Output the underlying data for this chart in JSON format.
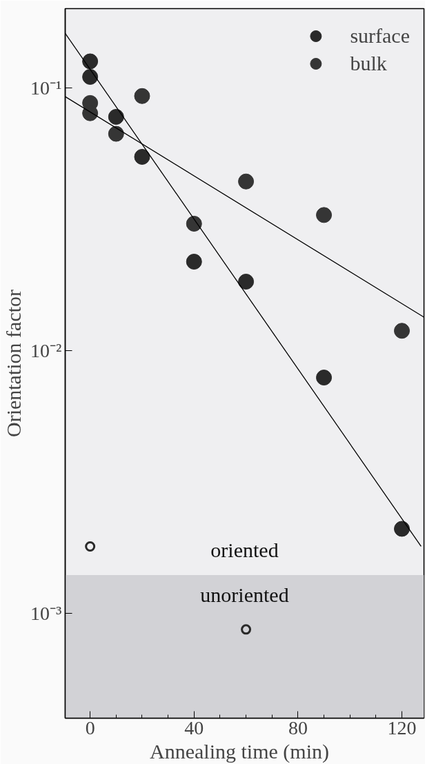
{
  "chart_data": {
    "type": "scatter",
    "xlabel": "Annealing time   (min)",
    "ylabel": "Orientation factor",
    "log": "y",
    "xlim": [
      -9.6,
      128.5
    ],
    "ylim": [
      0.0004,
      0.2
    ],
    "xticks": [
      0,
      {
        "value": 10,
        "label": null
      },
      {
        "value": 20,
        "label": null
      },
      {
        "value": 30,
        "label": null
      },
      40,
      {
        "value": 50,
        "label": null
      },
      {
        "value": 60,
        "label": null
      },
      {
        "value": 70,
        "label": null
      },
      80,
      {
        "value": 90,
        "label": null
      },
      {
        "value": 100,
        "label": null
      },
      {
        "value": 110,
        "label": null
      },
      120
    ],
    "yticks": [
      {
        "value": 0.1,
        "label": "10⁻¹"
      },
      {
        "value": 0.01,
        "label": "10⁻²"
      },
      {
        "value": 0.001,
        "label": "10⁻³"
      }
    ],
    "grid": false,
    "legend": "top right",
    "marker": "circle",
    "series": [
      {
        "name": "surface",
        "color": "#2a2a2a",
        "x": [
          0,
          0,
          10,
          20,
          40,
          60,
          90,
          120
        ],
        "values": [
          0.126,
          0.11,
          0.0775,
          0.0546,
          0.0218,
          0.0183,
          0.0079,
          0.0021
        ]
      },
      {
        "name": "bulk",
        "color": "#353535",
        "x": [
          0,
          0,
          10,
          20,
          40,
          60,
          90,
          120
        ],
        "values": [
          0.0875,
          0.08,
          0.0668,
          0.093,
          0.0304,
          0.044,
          0.0328,
          0.0119
        ]
      },
      {
        "type": "line",
        "marker": "none",
        "color": "#000000",
        "x": [
          -9.6,
          127.4
        ],
        "values": [
          0.161,
          0.0018
        ]
      },
      {
        "type": "line",
        "marker": "none",
        "color": "#000000",
        "x": [
          -9.6,
          128.5
        ],
        "values": [
          0.0925,
          0.0134
        ]
      },
      {
        "color": "#2a2a2a",
        "x": [
          0,
          60
        ],
        "values": [
          0.0018,
          0.00087
        ]
      }
    ],
    "bands": [
      {
        "axis": "y",
        "from": 0.0004,
        "to": 0.0014,
        "color": "#d2d2d6",
        "label": "unoriented"
      }
    ],
    "annotations": [
      "oriented"
    ]
  }
}
